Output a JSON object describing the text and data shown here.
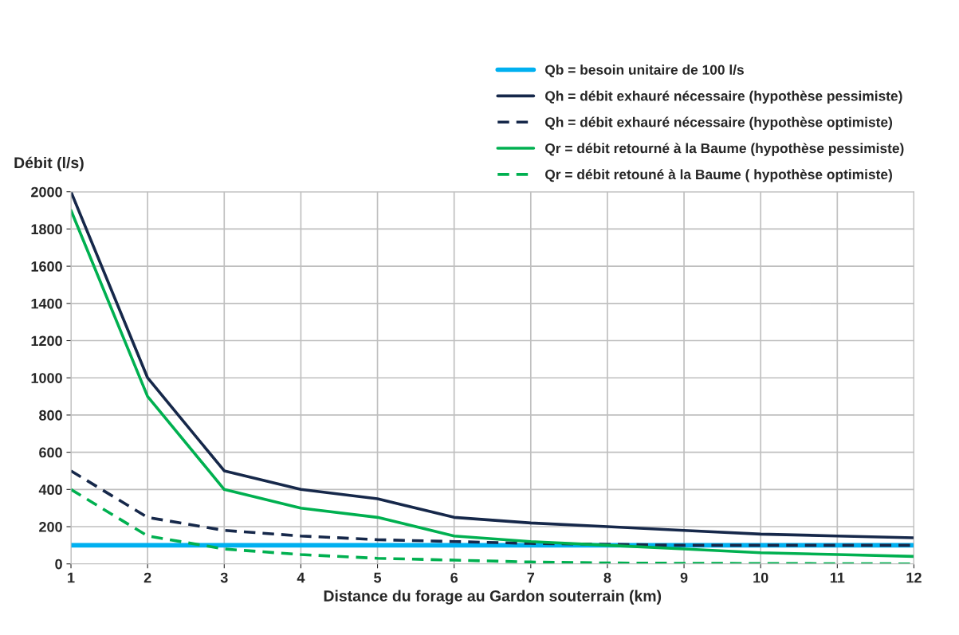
{
  "chart_data": {
    "type": "line",
    "xlabel": "Distance du forage au Gardon souterrain (km)",
    "ylabel": "Débit (l/s)",
    "x": [
      1,
      2,
      3,
      4,
      5,
      6,
      7,
      8,
      9,
      10,
      11,
      12
    ],
    "series": [
      {
        "name": "Qb = besoin unitaire de 100 l/s",
        "color": "#00b0f0",
        "line_style": "solid",
        "values": [
          100,
          100,
          100,
          100,
          100,
          100,
          100,
          100,
          100,
          100,
          100,
          100
        ]
      },
      {
        "name": "Qh = débit exhauré nécessaire (hypothèse pessimiste)",
        "color": "#16284a",
        "line_style": "solid",
        "values": [
          2000,
          1000,
          500,
          400,
          350,
          250,
          220,
          200,
          180,
          160,
          150,
          140
        ]
      },
      {
        "name": "Qh = débit exhauré nécessaire (hypothèse optimiste)",
        "color": "#16284a",
        "line_style": "dashed",
        "values": [
          500,
          250,
          180,
          150,
          130,
          120,
          110,
          105,
          100,
          100,
          100,
          100
        ]
      },
      {
        "name": "Qr = débit retourné à la Baume (hypothèse pessimiste)",
        "color": "#00b050",
        "line_style": "solid",
        "values": [
          1900,
          900,
          400,
          300,
          250,
          150,
          120,
          100,
          80,
          60,
          50,
          40
        ]
      },
      {
        "name": "Qr = débit retouné à la Baume ( hypothèse optimiste)",
        "color": "#00b050",
        "line_style": "dashed",
        "values": [
          400,
          150,
          80,
          50,
          30,
          20,
          10,
          5,
          3,
          2,
          1,
          0
        ]
      }
    ],
    "xlim": [
      1,
      12
    ],
    "xticks": [
      1,
      2,
      3,
      4,
      5,
      6,
      7,
      8,
      9,
      10,
      11,
      12
    ],
    "ylim": [
      0,
      2000
    ],
    "yticks": [
      0,
      200,
      400,
      600,
      800,
      1000,
      1200,
      1400,
      1600,
      1800,
      2000
    ],
    "grid": true,
    "legend": "top right",
    "marker": "none"
  }
}
